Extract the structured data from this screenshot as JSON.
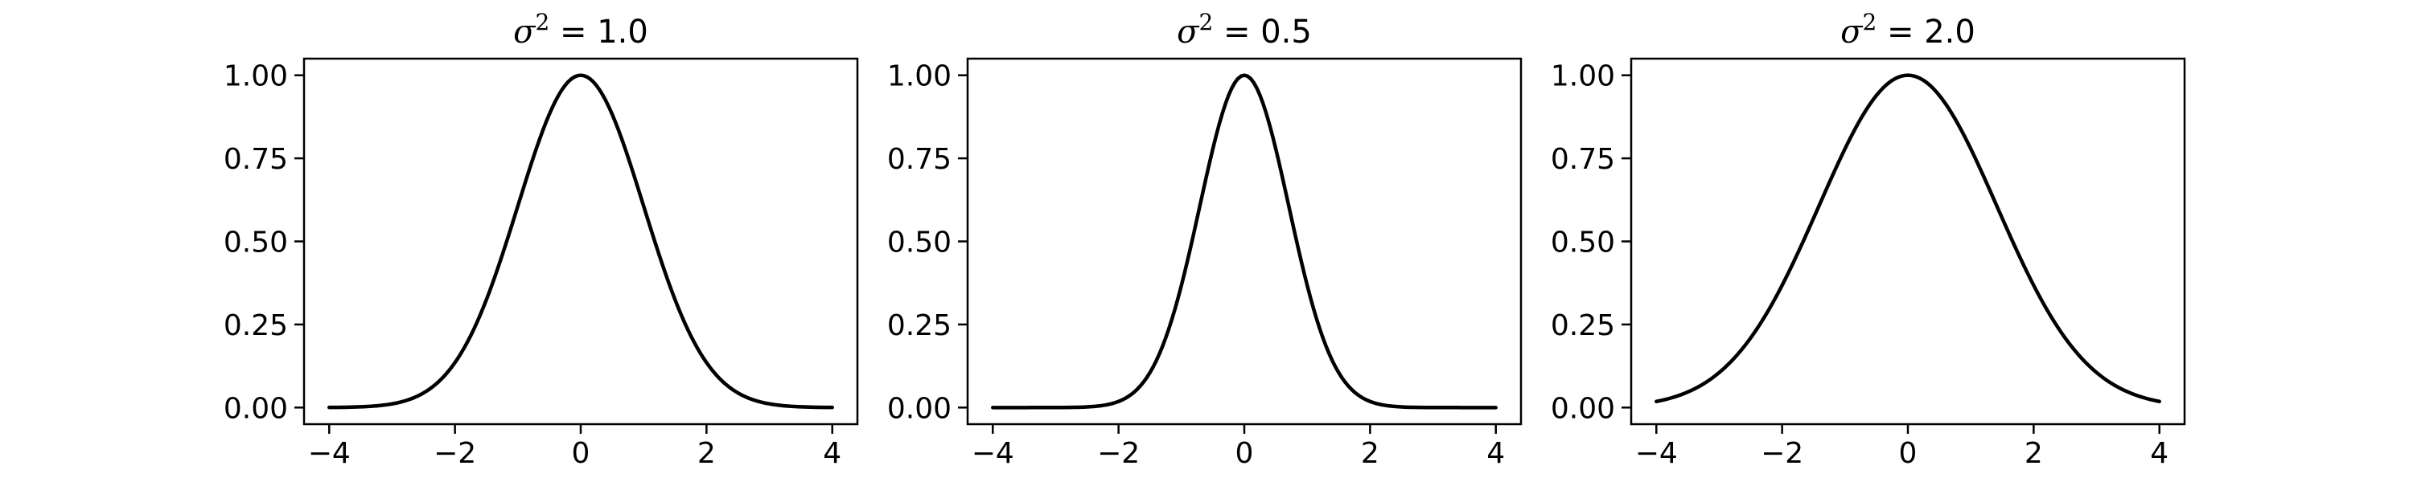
{
  "figure": {
    "background": "#ffffff",
    "line_color": "#000000"
  },
  "chart_data": [
    {
      "type": "line",
      "title": "σ² = 1.0",
      "title_main": "σ",
      "title_sup": "2",
      "title_rest": " = 1.0",
      "variance": 1.0,
      "xlabel": "",
      "ylabel": "",
      "xlim": [
        -4.4,
        4.4
      ],
      "ylim": [
        -0.05,
        1.05
      ],
      "xticks": [
        -4,
        -2,
        0,
        2,
        4
      ],
      "xtick_labels": [
        "−4",
        "−2",
        "0",
        "2",
        "4"
      ],
      "yticks": [
        0.0,
        0.25,
        0.5,
        0.75,
        1.0
      ],
      "ytick_labels": [
        "0.00",
        "0.25",
        "0.50",
        "0.75",
        "1.00"
      ],
      "grid": false,
      "series": [
        {
          "x": [
            -4.0,
            -3.5,
            -3.0,
            -2.5,
            -2.0,
            -1.5,
            -1.0,
            -0.5,
            0.0,
            0.5,
            1.0,
            1.5,
            2.0,
            2.5,
            3.0,
            3.5,
            4.0
          ],
          "values": [
            0.0003,
            0.0022,
            0.0111,
            0.0439,
            0.1353,
            0.3247,
            0.6065,
            0.8825,
            1.0,
            0.8825,
            0.6065,
            0.3247,
            0.1353,
            0.0439,
            0.0111,
            0.0022,
            0.0003
          ]
        }
      ]
    },
    {
      "type": "line",
      "title": "σ² = 0.5",
      "title_main": "σ",
      "title_sup": "2",
      "title_rest": " = 0.5",
      "variance": 0.5,
      "xlabel": "",
      "ylabel": "",
      "xlim": [
        -4.4,
        4.4
      ],
      "ylim": [
        -0.05,
        1.05
      ],
      "xticks": [
        -4,
        -2,
        0,
        2,
        4
      ],
      "xtick_labels": [
        "−4",
        "−2",
        "0",
        "2",
        "4"
      ],
      "yticks": [
        0.0,
        0.25,
        0.5,
        0.75,
        1.0
      ],
      "ytick_labels": [
        "0.00",
        "0.25",
        "0.50",
        "0.75",
        "1.00"
      ],
      "grid": false,
      "series": [
        {
          "x": [
            -4.0,
            -3.5,
            -3.0,
            -2.5,
            -2.0,
            -1.5,
            -1.0,
            -0.5,
            0.0,
            0.5,
            1.0,
            1.5,
            2.0,
            2.5,
            3.0,
            3.5,
            4.0
          ],
          "values": [
            0.0,
            0.0,
            0.0001,
            0.0019,
            0.0183,
            0.1054,
            0.3679,
            0.7788,
            1.0,
            0.7788,
            0.3679,
            0.1054,
            0.0183,
            0.0019,
            0.0001,
            0.0,
            0.0
          ]
        }
      ]
    },
    {
      "type": "line",
      "title": "σ² = 2.0",
      "title_main": "σ",
      "title_sup": "2",
      "title_rest": " = 2.0",
      "variance": 2.0,
      "xlabel": "",
      "ylabel": "",
      "xlim": [
        -4.4,
        4.4
      ],
      "ylim": [
        -0.05,
        1.05
      ],
      "xticks": [
        -4,
        -2,
        0,
        2,
        4
      ],
      "xtick_labels": [
        "−4",
        "−2",
        "0",
        "2",
        "4"
      ],
      "yticks": [
        0.0,
        0.25,
        0.5,
        0.75,
        1.0
      ],
      "ytick_labels": [
        "0.00",
        "0.25",
        "0.50",
        "0.75",
        "1.00"
      ],
      "grid": false,
      "series": [
        {
          "x": [
            -4.0,
            -3.5,
            -3.0,
            -2.5,
            -2.0,
            -1.5,
            -1.0,
            -0.5,
            0.0,
            0.5,
            1.0,
            1.5,
            2.0,
            2.5,
            3.0,
            3.5,
            4.0
          ],
          "values": [
            0.0183,
            0.0468,
            0.1054,
            0.2096,
            0.3679,
            0.5698,
            0.7788,
            0.9394,
            1.0,
            0.9394,
            0.7788,
            0.5698,
            0.3679,
            0.2096,
            0.1054,
            0.0468,
            0.0183
          ]
        }
      ]
    }
  ]
}
